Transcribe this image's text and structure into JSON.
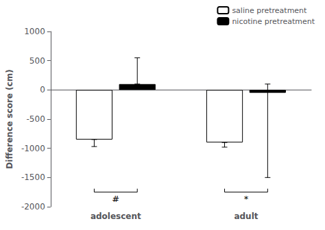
{
  "chart_data": {
    "type": "bar",
    "categories": [
      "adolescent",
      "adult"
    ],
    "ylabel": "Difference score (cm)",
    "series": [
      {
        "name": "saline pretreatment",
        "color": "#ffffff",
        "values": [
          -850,
          -900
        ],
        "error_minus": [
          120,
          80
        ],
        "error_plus": [
          0,
          0
        ]
      },
      {
        "name": "nicotine pretreatment",
        "color": "#000000",
        "values": [
          100,
          -50
        ],
        "error_minus": [
          0,
          1450
        ],
        "error_plus": [
          450,
          150
        ]
      }
    ],
    "ylim": [
      -2000,
      1000
    ],
    "yticks": [
      -2000,
      -1500,
      -1000,
      -500,
      0,
      500,
      1000
    ],
    "grid": false,
    "legend": "upper right",
    "annotations": [
      {
        "text": "#",
        "category": "adolescent",
        "y": -1750
      },
      {
        "text": "*",
        "category": "adult",
        "y": -1750
      }
    ]
  }
}
